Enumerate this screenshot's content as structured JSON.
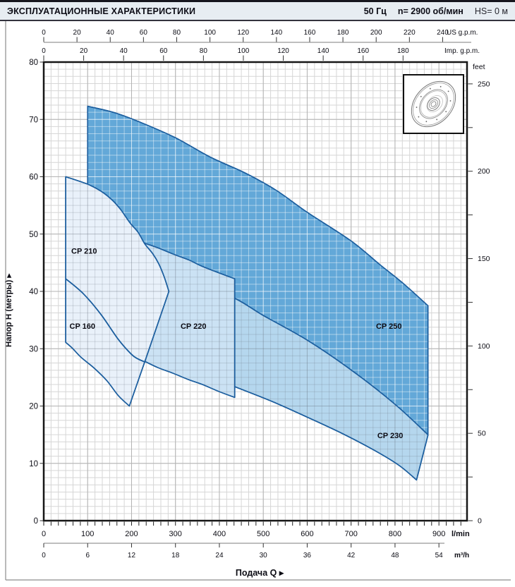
{
  "header": {
    "title": "ЭКСПЛУАТАЦИОННЫЕ ХАРАКТЕРИСТИКИ",
    "frequency": "50 Гц",
    "speed": "n= 2900 об/мин",
    "suction_head": "HS= 0 м"
  },
  "chart_data": {
    "type": "area",
    "description": "Pump family performance envelopes (head H vs flow Q) at 50 Hz, 2900 rpm",
    "q_unit": "l/min",
    "h_unit": "m",
    "q_max": 964,
    "h_max": 80,
    "x_axis_lmin": {
      "unit": "l/min",
      "ticks": [
        0,
        100,
        200,
        300,
        400,
        500,
        600,
        700,
        800,
        900
      ]
    },
    "x_axis_m3h": {
      "unit": "m³/h",
      "ticks": [
        0,
        6,
        12,
        18,
        24,
        30,
        36,
        42,
        48,
        54
      ]
    },
    "x_axis_us": {
      "unit": "US g.p.m.",
      "ticks": [
        0,
        20,
        40,
        60,
        80,
        100,
        120,
        140,
        160,
        180,
        200,
        220,
        240
      ]
    },
    "x_axis_imp": {
      "unit": "Imp. g.p.m.",
      "ticks": [
        0,
        20,
        40,
        60,
        80,
        100,
        120,
        140,
        160,
        180
      ]
    },
    "y_axis_m": {
      "title": "Напор H (метры)",
      "ticks": [
        0,
        10,
        20,
        30,
        40,
        50,
        60,
        70,
        80
      ]
    },
    "y_axis_ft": {
      "unit": "feet",
      "ticks": [
        0,
        50,
        100,
        150,
        200,
        250
      ],
      "minor_step": 25
    },
    "x_title": "Подача Q",
    "arrow": "▸",
    "colors": {
      "region_stroke": "#1d5f9f",
      "grid_minor": "#d6d6d6",
      "grid_major": "#b3b3b3",
      "plot_border": "#161616",
      "axis_line": "#a9a9a9",
      "tick": "#333333",
      "label": "#0c0c14",
      "frame": "#8c8c8c"
    },
    "regions": [
      {
        "id": "cp230",
        "name": "CP 230",
        "fill": "#b5d7ee",
        "grid_tint": "dark",
        "label_at": [
          789,
          14.9
        ],
        "segments": [
          {
            "type": "line",
            "points": [
              [
                432,
                40
              ],
              [
                432,
                23.5
              ]
            ]
          },
          {
            "type": "curve",
            "points": [
              [
                432,
                23.5
              ],
              [
                441,
                23.2
              ],
              [
                520,
                20.8
              ],
              [
                596,
                18.2
              ],
              [
                680,
                15.2
              ],
              [
                757,
                12.1
              ],
              [
                810,
                9.6
              ],
              [
                849,
                7.1
              ]
            ]
          },
          {
            "type": "line",
            "points": [
              [
                849,
                7.1
              ],
              [
                875,
                14.9
              ]
            ]
          },
          {
            "type": "curve",
            "points": [
              [
                875,
                14.9
              ],
              [
                850,
                18.0
              ],
              [
                820,
                19.5
              ],
              [
                760,
                23.5
              ],
              [
                700,
                26.8
              ],
              [
                600,
                33.0
              ],
              [
                500,
                37.0
              ],
              [
                432,
                40.0
              ]
            ]
          }
        ]
      },
      {
        "id": "cp250",
        "name": "CP 250",
        "fill": "#63a8d8",
        "grid_tint": "light",
        "label_at": [
          786,
          34
        ],
        "segments": [
          {
            "type": "line",
            "points": [
              [
                100,
                72.3
              ],
              [
                100,
                55
              ]
            ]
          },
          {
            "type": "curve",
            "points": [
              [
                100,
                55
              ],
              [
                160,
                50.6
              ],
              [
                230,
                45.5
              ],
              [
                330,
                42.3
              ],
              [
                435,
                38.8
              ],
              [
                500,
                35.8
              ],
              [
                600,
                31.5
              ],
              [
                700,
                26.3
              ],
              [
                800,
                20.3
              ],
              [
                875,
                15.0
              ]
            ]
          },
          {
            "type": "line",
            "points": [
              [
                875,
                15.0
              ],
              [
                875,
                37.5
              ]
            ]
          },
          {
            "type": "curve",
            "points": [
              [
                875,
                37.5
              ],
              [
                820,
                41.3
              ],
              [
                765,
                44.7
              ],
              [
                700,
                48.8
              ],
              [
                600,
                53.8
              ],
              [
                530,
                57.6
              ],
              [
                460,
                60.6
              ],
              [
                380,
                63.4
              ],
              [
                300,
                66.8
              ],
              [
                220,
                69.5
              ],
              [
                160,
                71.2
              ],
              [
                100,
                72.3
              ]
            ]
          }
        ]
      },
      {
        "id": "cp220",
        "name": "CP 220",
        "fill": "#cbe2f4",
        "grid_tint": "dark",
        "label_at": [
          341,
          34
        ],
        "segments": [
          {
            "type": "line",
            "points": [
              [
                230,
                27.8
              ],
              [
                230,
                48.4
              ]
            ]
          },
          {
            "type": "curve",
            "points": [
              [
                230,
                48.4
              ],
              [
                260,
                47.6
              ],
              [
                295,
                46.5
              ],
              [
                330,
                45.5
              ],
              [
                360,
                44.4
              ],
              [
                400,
                43.2
              ],
              [
                435,
                42.2
              ]
            ]
          },
          {
            "type": "line",
            "points": [
              [
                435,
                42.2
              ],
              [
                435,
                21.5
              ]
            ]
          },
          {
            "type": "curve",
            "points": [
              [
                435,
                21.5
              ],
              [
                400,
                22.5
              ],
              [
                360,
                23.8
              ],
              [
                330,
                24.6
              ],
              [
                295,
                25.7
              ],
              [
                260,
                26.7
              ],
              [
                230,
                27.8
              ]
            ]
          }
        ]
      },
      {
        "id": "cp210",
        "name": "CP 210",
        "fill": "#e9f1fa",
        "grid_tint": "dark",
        "label_at": [
          92,
          47.1
        ],
        "segments": [
          {
            "type": "line",
            "points": [
              [
                50,
                42.2
              ],
              [
                50,
                60
              ]
            ]
          },
          {
            "type": "curve",
            "points": [
              [
                50,
                60
              ],
              [
                100,
                58.7
              ],
              [
                130,
                57.5
              ],
              [
                155,
                56
              ],
              [
                175,
                54.3
              ],
              [
                196,
                52
              ],
              [
                215,
                50.3
              ],
              [
                230,
                48.3
              ],
              [
                248,
                46.6
              ],
              [
                262,
                44.8
              ],
              [
                274,
                42.6
              ],
              [
                285,
                40
              ]
            ]
          },
          {
            "type": "line",
            "points": [
              [
                285,
                40
              ],
              [
                230,
                27.7
              ]
            ]
          },
          {
            "type": "curve",
            "points": [
              [
                230,
                27.7
              ],
              [
                215,
                28.2
              ],
              [
                200,
                29
              ],
              [
                170,
                31.6
              ],
              [
                130,
                36
              ],
              [
                90,
                39.6
              ],
              [
                50,
                42.2
              ]
            ]
          }
        ]
      },
      {
        "id": "cp160",
        "name": "CP 160",
        "fill": "#e9f1fa",
        "grid_tint": "dark",
        "label_at": [
          88,
          34
        ],
        "segments": [
          {
            "type": "line",
            "points": [
              [
                50,
                31.1
              ],
              [
                50,
                42.2
              ]
            ]
          },
          {
            "type": "curve",
            "points": [
              [
                50,
                42.2
              ],
              [
                90,
                39.6
              ],
              [
                130,
                36
              ],
              [
                170,
                31.6
              ],
              [
                200,
                29
              ],
              [
                215,
                28.2
              ],
              [
                230,
                27.7
              ]
            ]
          },
          {
            "type": "line",
            "points": [
              [
                230,
                27.7
              ],
              [
                195,
                20
              ]
            ]
          },
          {
            "type": "curve",
            "points": [
              [
                195,
                20
              ],
              [
                170,
                21.8
              ],
              [
                144,
                24.4
              ],
              [
                115,
                26.6
              ],
              [
                85,
                28.5
              ],
              [
                65,
                30.1
              ],
              [
                50,
                31.1
              ]
            ]
          }
        ]
      }
    ]
  }
}
